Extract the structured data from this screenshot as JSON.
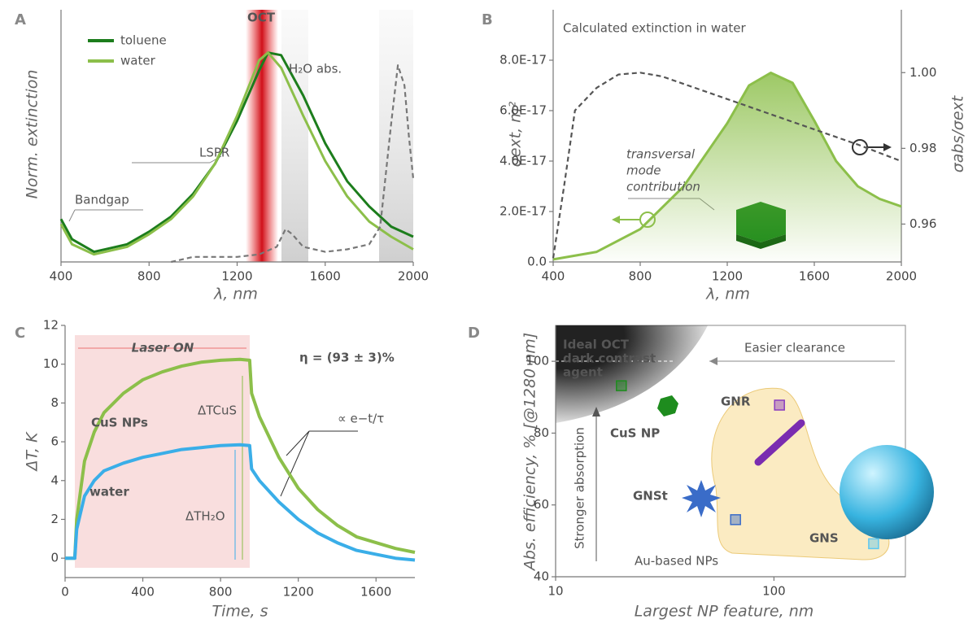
{
  "chart_data": [
    {
      "type": "line",
      "panel": "A",
      "ylabel": "Norm. extinction",
      "xlabel": "λ, nm",
      "xlim": [
        400,
        2000
      ],
      "xticks": [
        400,
        800,
        1200,
        1600,
        2000
      ],
      "ylim": [
        0,
        1
      ],
      "legend": "upper left",
      "x": [
        400,
        450,
        550,
        700,
        800,
        900,
        1000,
        1100,
        1200,
        1300,
        1340,
        1400,
        1500,
        1600,
        1700,
        1800,
        1900,
        2000
      ],
      "series": [
        {
          "name": "toluene",
          "color": "#1c7d1c",
          "values": [
            0.17,
            0.09,
            0.04,
            0.07,
            0.12,
            0.18,
            0.27,
            0.39,
            0.56,
            0.76,
            0.83,
            0.82,
            0.66,
            0.47,
            0.32,
            0.22,
            0.14,
            0.1
          ]
        },
        {
          "name": "water",
          "color": "#8cbf4a",
          "values": [
            0.15,
            0.07,
            0.03,
            0.06,
            0.11,
            0.17,
            0.26,
            0.39,
            0.58,
            0.8,
            0.83,
            0.77,
            0.58,
            0.4,
            0.26,
            0.16,
            0.1,
            0.05
          ]
        },
        {
          "color": "#777777",
          "dashed": true,
          "x": [
            900,
            1000,
            1100,
            1200,
            1300,
            1380,
            1420,
            1450,
            1500,
            1600,
            1700,
            1800,
            1850,
            1900,
            1930,
            1960,
            1980,
            2000
          ],
          "values": [
            0,
            0.02,
            0.02,
            0.02,
            0.03,
            0.06,
            0.13,
            0.11,
            0.06,
            0.04,
            0.05,
            0.07,
            0.14,
            0.55,
            0.78,
            0.7,
            0.5,
            0.33
          ]
        }
      ],
      "annotations": [
        "OCT",
        "H₂O abs.",
        "LSPR",
        "Bandgap"
      ]
    },
    {
      "type": "line",
      "panel": "B",
      "title": "Calculated extinction in water",
      "ylabel": "σext, m²",
      "y2label": "σabs/σext",
      "xlabel": "λ, nm",
      "xlim": [
        400,
        2000
      ],
      "xticks": [
        400,
        800,
        1200,
        1600,
        2000
      ],
      "ylim": [
        0,
        1e-16
      ],
      "yticks": [
        {
          "value": 0,
          "label": "0.0"
        },
        {
          "value": 2e-17,
          "label": "2.0E-17"
        },
        {
          "value": 4e-17,
          "label": "4.0E-17"
        },
        {
          "value": 6e-17,
          "label": "6.0E-17"
        },
        {
          "value": 8e-17,
          "label": "8.0E-17"
        }
      ],
      "y2lim": [
        0.95,
        1.0166
      ],
      "y2ticks": [
        0.96,
        0.98,
        {
          "value": 1,
          "label": "1.00"
        }
      ],
      "series": [
        {
          "color": "#8cbf4a",
          "fill": true,
          "x": [
            400,
            600,
            800,
            1000,
            1200,
            1300,
            1400,
            1500,
            1600,
            1700,
            1800,
            1900,
            2000
          ],
          "values": [
            1e-18,
            4e-18,
            1.3e-17,
            3e-17,
            5.5e-17,
            7e-17,
            7.5e-17,
            7.1e-17,
            5.6e-17,
            4e-17,
            3e-17,
            2.5e-17,
            2.2e-17
          ]
        },
        {
          "color": "#555555",
          "dashed": true,
          "axis": "y2",
          "x": [
            400,
            450,
            500,
            600,
            700,
            800,
            900,
            1000,
            1200,
            1400,
            1600,
            1800,
            2000
          ],
          "values": [
            0.951,
            0.97,
            0.99,
            0.996,
            0.9995,
            1.0,
            0.999,
            0.997,
            0.993,
            0.989,
            0.985,
            0.981,
            0.9766
          ]
        }
      ],
      "annotations": [
        "transversal",
        "mode",
        "contribution"
      ]
    },
    {
      "type": "line",
      "panel": "C",
      "ylabel": "ΔT, K",
      "xlabel": "Time, s",
      "xlim": [
        0,
        1800
      ],
      "xticks": [
        0,
        400,
        800,
        1200,
        1600
      ],
      "ylim": [
        -1,
        12
      ],
      "yticks": [
        0,
        2,
        4,
        6,
        8,
        10,
        12
      ],
      "x": [
        0,
        50,
        60,
        100,
        150,
        200,
        300,
        400,
        500,
        600,
        700,
        800,
        900,
        950,
        960,
        1000,
        1100,
        1200,
        1300,
        1400,
        1500,
        1600,
        1700,
        1800
      ],
      "series": [
        {
          "name": "CuS NPs",
          "color": "#8cbf4a",
          "values": [
            0,
            0,
            2,
            5,
            6.5,
            7.5,
            8.5,
            9.2,
            9.6,
            9.9,
            10.1,
            10.2,
            10.25,
            10.2,
            8.5,
            7.3,
            5.2,
            3.6,
            2.5,
            1.7,
            1.1,
            0.8,
            0.5,
            0.3
          ]
        },
        {
          "name": "water",
          "color": "#3aaee8",
          "values": [
            0,
            0,
            1.5,
            3.2,
            4,
            4.5,
            4.9,
            5.2,
            5.4,
            5.6,
            5.7,
            5.8,
            5.85,
            5.8,
            4.6,
            4,
            2.9,
            2,
            1.3,
            0.8,
            0.4,
            0.2,
            0,
            -0.1
          ]
        }
      ],
      "annotations": [
        "Laser ON",
        "η = (93 ± 3)%",
        "ΔTCuS",
        "ΔTH₂O",
        "∝ e−t/τ"
      ]
    },
    {
      "type": "scatter",
      "panel": "D",
      "ylabel": "Abs. efficiency, % [@1280 nm]",
      "xlabel": "Largest NP feature, nm",
      "xscale": "log",
      "xlim": [
        10,
        400
      ],
      "xticks": [
        10,
        100
      ],
      "ylim": [
        40,
        110
      ],
      "yticks": [
        40,
        60,
        80,
        100
      ],
      "series": [
        {
          "name": "CuS NP",
          "color": "#1e8c1e",
          "x": [
            20
          ],
          "values": [
            93.2
          ]
        },
        {
          "name": "GNR",
          "color": "#8a3cc0",
          "x": [
            106
          ],
          "values": [
            87.8
          ]
        },
        {
          "name": "GNSt",
          "color": "#3a6cc8",
          "x": [
            66.7
          ],
          "values": [
            55.9
          ]
        },
        {
          "name": "GNS",
          "color": "#5ec8f0",
          "x": [
            286
          ],
          "values": [
            49.2
          ]
        }
      ],
      "annotations": [
        "Ideal OCT",
        "dark contrast",
        "agent",
        "Easier clearance",
        "Stronger absorption",
        "Au-based NPs"
      ]
    }
  ]
}
